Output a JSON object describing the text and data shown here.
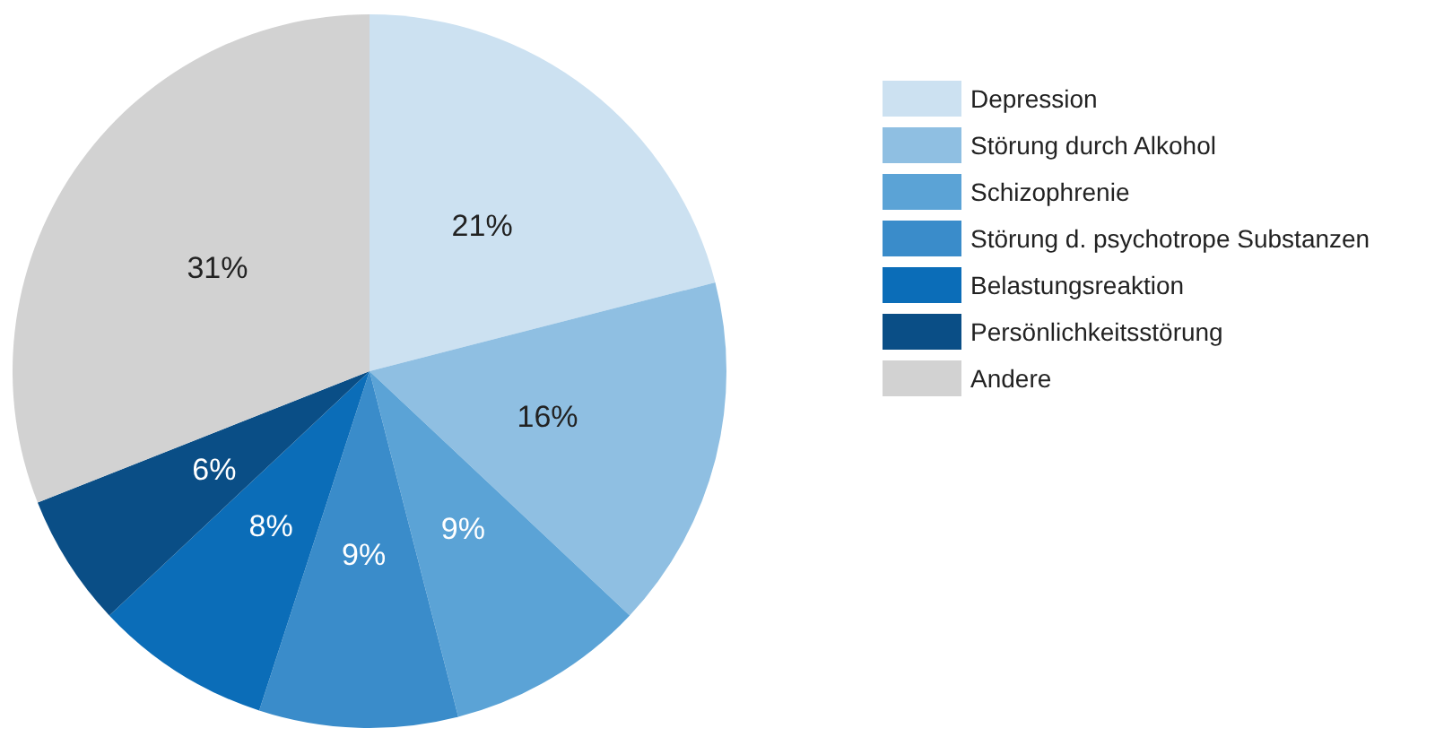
{
  "chart_data": {
    "type": "pie",
    "categories": [
      "Depression",
      "Störung durch Alkohol",
      "Schizophrenie",
      "Störung d. psychotrope Substanzen",
      "Belastungsreaktion",
      "Persönlichkeitsstörung",
      "Andere"
    ],
    "values": [
      21,
      16,
      9,
      9,
      8,
      6,
      31
    ],
    "colors": [
      "#cce1f1",
      "#8fbfe2",
      "#5ba3d6",
      "#3a8cca",
      "#0b6db8",
      "#0a4e86",
      "#d2d2d2"
    ],
    "value_labels": [
      "21%",
      "16%",
      "9%",
      "9%",
      "8%",
      "6%",
      "31%"
    ],
    "legend": "right"
  }
}
